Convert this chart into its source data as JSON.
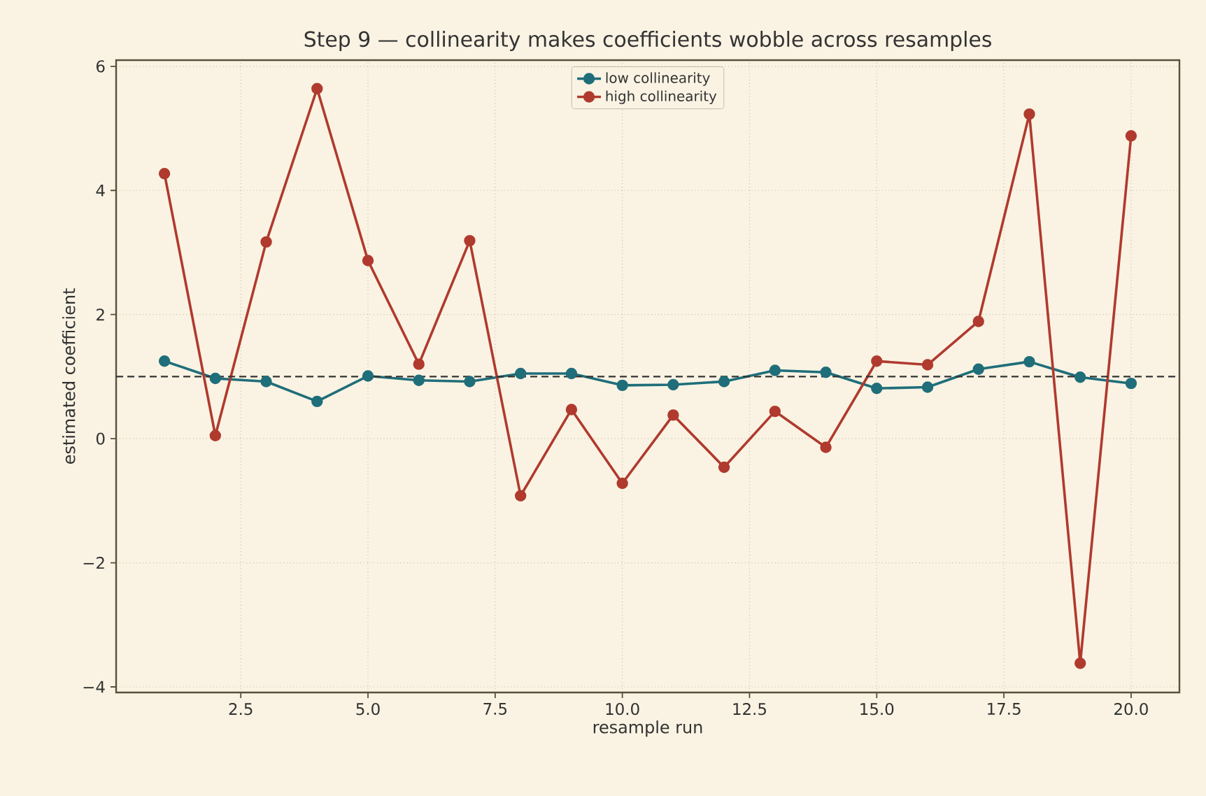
{
  "chart_data": {
    "type": "line",
    "title": "Step 9 — collinearity makes coefficients wobble across resamples",
    "xlabel": "resample run",
    "ylabel": "estimated coefficient",
    "x": [
      1,
      2,
      3,
      4,
      5,
      6,
      7,
      8,
      9,
      10,
      11,
      12,
      13,
      14,
      15,
      16,
      17,
      18,
      19,
      20
    ],
    "series": [
      {
        "name": "low collinearity",
        "color": "#1f6e7a",
        "values": [
          1.25,
          0.97,
          0.92,
          0.6,
          1.01,
          0.94,
          0.92,
          1.05,
          1.05,
          0.86,
          0.87,
          0.92,
          1.1,
          1.07,
          0.81,
          0.83,
          1.12,
          1.24,
          0.99,
          0.89
        ]
      },
      {
        "name": "high collinearity",
        "color": "#b03a2e",
        "values": [
          4.27,
          0.05,
          3.17,
          5.64,
          2.87,
          1.2,
          3.19,
          -0.92,
          0.47,
          -0.72,
          0.38,
          -0.46,
          0.44,
          -0.14,
          1.25,
          1.19,
          1.89,
          5.23,
          -3.62,
          4.88
        ]
      }
    ],
    "xlim": [
      0.05,
      20.95
    ],
    "ylim": [
      -4.09,
      6.1
    ],
    "xticks": [
      {
        "value": 2.5,
        "label": "2.5"
      },
      {
        "value": 5,
        "label": "5.0"
      },
      {
        "value": 7.5,
        "label": "7.5"
      },
      {
        "value": 10,
        "label": "10.0"
      },
      {
        "value": 12.5,
        "label": "12.5"
      },
      {
        "value": 15,
        "label": "15.0"
      },
      {
        "value": 17.5,
        "label": "17.5"
      },
      {
        "value": 20,
        "label": "20.0"
      }
    ],
    "yticks": [
      {
        "value": -4,
        "label": "−4"
      },
      {
        "value": -2,
        "label": "−2"
      },
      0,
      2,
      4,
      6
    ],
    "ref_lines": [
      {
        "axis": "y",
        "value": 1.0,
        "color": "#333333",
        "line_style": "dashed"
      }
    ],
    "grid": true,
    "legend": "top",
    "marker": "circle",
    "line_style": "solid"
  }
}
